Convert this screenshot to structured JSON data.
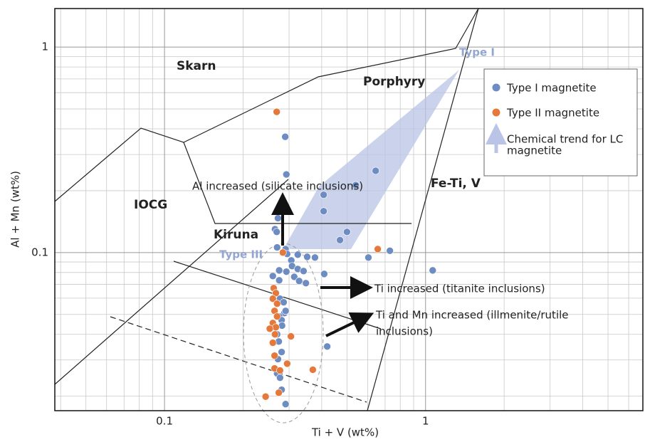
{
  "chart_data": {
    "type": "scatter",
    "xlabel": "Ti + V (wt%)",
    "ylabel": "Al + Mn (wt%)",
    "xlog": true,
    "ylog": true,
    "xlim": [
      0.038,
      6.8
    ],
    "ylim": [
      0.017,
      1.54
    ],
    "xticks": [
      0.1,
      1
    ],
    "yticks": [
      0.1,
      1
    ],
    "xminor_ticks": [
      0.04,
      0.05,
      0.06,
      0.07,
      0.08,
      0.09,
      0.2,
      0.3,
      0.4,
      0.5,
      0.6,
      0.7,
      0.8,
      0.9,
      2,
      3,
      4,
      5,
      6
    ],
    "yminor_ticks": [
      0.02,
      0.03,
      0.04,
      0.05,
      0.06,
      0.07,
      0.08,
      0.09,
      0.2,
      0.3,
      0.4,
      0.5,
      0.6,
      0.7,
      0.8,
      0.9
    ],
    "grid": true,
    "legend": "upper right",
    "series": [
      {
        "name": "Type I magnetite",
        "color": "#6d8cc2",
        "x": [
          0.29,
          0.293,
          0.644,
          0.54,
          0.407,
          0.407,
          0.272,
          0.265,
          0.269,
          0.5,
          0.47,
          0.27,
          0.291,
          0.604,
          0.73,
          1.065,
          0.295,
          0.324,
          0.352,
          0.377,
          0.306,
          0.308,
          0.324,
          0.341,
          0.314,
          0.409,
          0.328,
          0.348,
          0.275,
          0.293,
          0.26,
          0.275,
          0.277,
          0.286,
          0.288,
          0.275,
          0.281,
          0.291,
          0.282,
          0.27,
          0.274,
          0.281,
          0.272,
          0.42,
          0.27,
          0.277,
          0.281,
          0.291
        ],
        "y": [
          0.366,
          0.24,
          0.25,
          0.213,
          0.191,
          0.159,
          0.147,
          0.13,
          0.126,
          0.126,
          0.115,
          0.106,
          0.104,
          0.0946,
          0.102,
          0.0819,
          0.0984,
          0.0977,
          0.0953,
          0.0946,
          0.0916,
          0.086,
          0.0832,
          0.0813,
          0.0762,
          0.0787,
          0.0727,
          0.071,
          0.0819,
          0.0807,
          0.0769,
          0.0733,
          0.0596,
          0.0573,
          0.0508,
          0.0489,
          0.0469,
          0.052,
          0.0441,
          0.04,
          0.0369,
          0.0328,
          0.0303,
          0.0349,
          0.0258,
          0.0246,
          0.0215,
          0.0183
        ]
      },
      {
        "name": "Type II magnetite",
        "color": "#e5793b",
        "x": [
          0.269,
          0.284,
          0.656,
          0.262,
          0.267,
          0.26,
          0.27,
          0.264,
          0.27,
          0.26,
          0.267,
          0.253,
          0.265,
          0.305,
          0.26,
          0.264,
          0.295,
          0.264,
          0.277,
          0.37,
          0.274,
          0.244
        ],
        "y": [
          0.484,
          0.1,
          0.104,
          0.0671,
          0.0635,
          0.0596,
          0.0564,
          0.052,
          0.0489,
          0.0454,
          0.0433,
          0.0426,
          0.04,
          0.0391,
          0.0364,
          0.0315,
          0.0288,
          0.0273,
          0.0267,
          0.0269,
          0.0208,
          0.0199
        ]
      }
    ],
    "trend_legend": {
      "lines": [
        "Chemical trend for LC",
        "magnetite"
      ],
      "color": "#b9c4e6"
    },
    "regions": [
      "Skarn",
      "Porphyry",
      "IOCG",
      "Kiruna",
      "Fe-Ti, V"
    ],
    "type_labels": [
      "Type I",
      "Type III"
    ],
    "annotations": [
      [
        "Al increased (silicate inclusions)"
      ],
      [
        "Ti increased (titanite inclusions)"
      ],
      [
        "Ti and Mn increased (illmenite/rutile",
        "inclusions)"
      ]
    ]
  }
}
